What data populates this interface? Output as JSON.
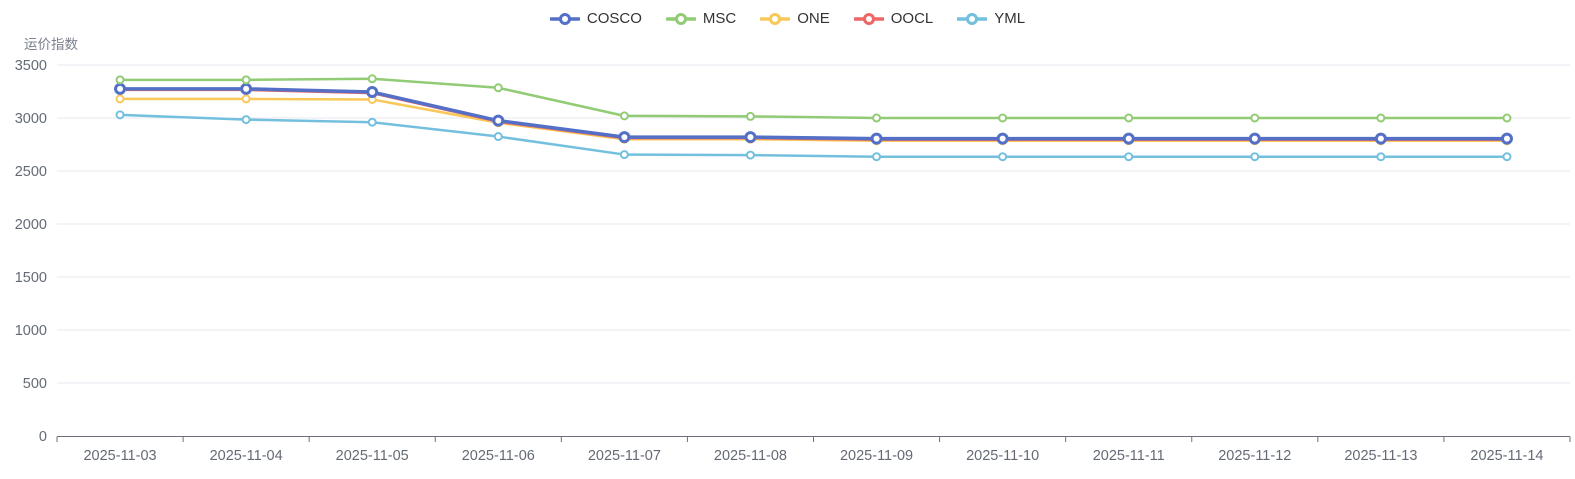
{
  "chart": {
    "y_axis_name": "运价指数"
  },
  "chart_data": {
    "type": "line",
    "title": "运价指数",
    "xlabel": "",
    "ylabel": "运价指数",
    "categories": [
      "2025-11-03",
      "2025-11-04",
      "2025-11-05",
      "2025-11-06",
      "2025-11-07",
      "2025-11-08",
      "2025-11-09",
      "2025-11-10",
      "2025-11-11",
      "2025-11-12",
      "2025-11-13",
      "2025-11-14"
    ],
    "series": [
      {
        "name": "COSCO",
        "color": "#5470C6",
        "values": [
          3275,
          3275,
          3245,
          2975,
          2820,
          2820,
          2805,
          2805,
          2805,
          2805,
          2805,
          2805
        ]
      },
      {
        "name": "MSC",
        "color": "#91CC75",
        "values": [
          3360,
          3360,
          3370,
          3285,
          3020,
          3015,
          3000,
          3000,
          3000,
          3000,
          3000,
          3000
        ]
      },
      {
        "name": "ONE",
        "color": "#FAC858",
        "values": [
          3180,
          3180,
          3175,
          2955,
          2800,
          2800,
          2785,
          2785,
          2785,
          2785,
          2785,
          2785
        ]
      },
      {
        "name": "OOCL",
        "color": "#EE6666",
        "values": [
          3265,
          3265,
          3235,
          2965,
          2810,
          2810,
          2795,
          2795,
          2795,
          2795,
          2795,
          2795
        ]
      },
      {
        "name": "YML",
        "color": "#73C0DE",
        "values": [
          3030,
          2985,
          2960,
          2825,
          2655,
          2650,
          2635,
          2635,
          2635,
          2635,
          2635,
          2635
        ]
      }
    ],
    "ylim": [
      0,
      3500
    ],
    "ytick_interval": 500,
    "ytick_labels": [
      "0",
      "500",
      "1000",
      "1500",
      "2000",
      "2500",
      "3000",
      "3500"
    ],
    "grid": "horizontal",
    "legend_position": "top-center",
    "legend_entries": [
      "COSCO",
      "MSC",
      "ONE",
      "OOCL",
      "YML"
    ],
    "marker": "hollow-circle",
    "colors": {
      "grid_line": "#E4E8F1",
      "axis_line": "#6E7079",
      "tick_label": "#646a75",
      "legend_text": "#333333",
      "background": "#ffffff"
    }
  }
}
